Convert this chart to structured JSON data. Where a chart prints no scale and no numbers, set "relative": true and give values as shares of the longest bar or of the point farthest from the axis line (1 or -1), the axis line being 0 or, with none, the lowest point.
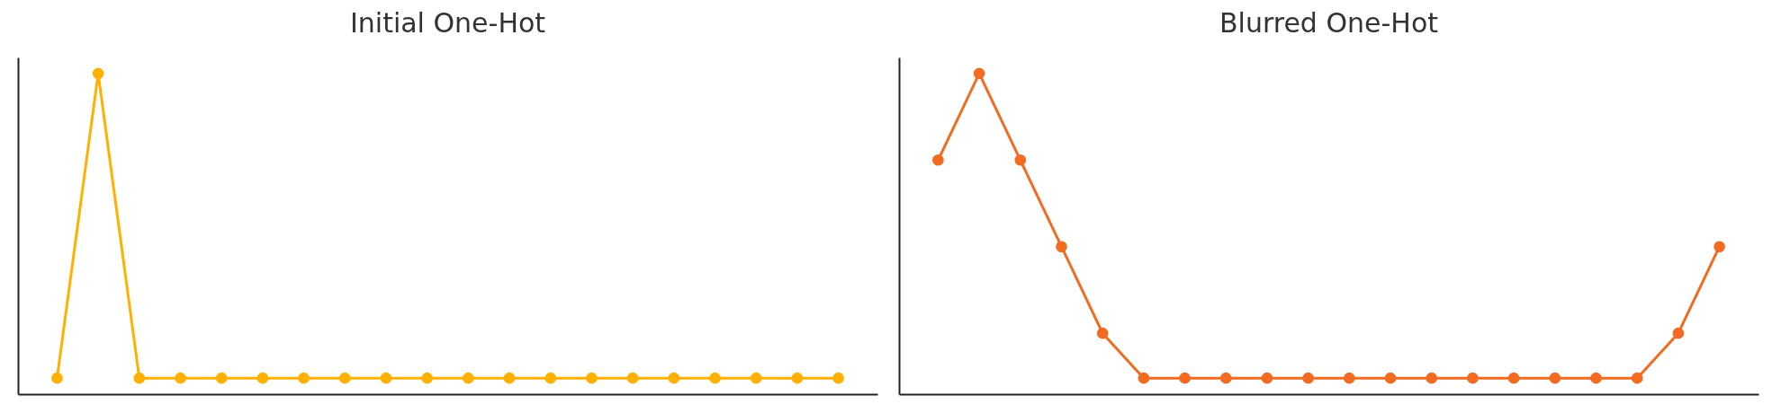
{
  "chart_data": [
    {
      "type": "line",
      "title": "Initial One-Hot",
      "relative": true,
      "marker": "circle",
      "categories": [
        null,
        null,
        null,
        null,
        null,
        null,
        null,
        null,
        null,
        null,
        null,
        null,
        null,
        null,
        null,
        null,
        null,
        null,
        null,
        null
      ],
      "series": [
        {
          "color": "#ffb000",
          "values": [
            0.05,
            1,
            0.05,
            0.05,
            0.05,
            0.05,
            0.05,
            0.05,
            0.05,
            0.05,
            0.05,
            0.05,
            0.05,
            0.05,
            0.05,
            0.05,
            0.05,
            0.05,
            0.05,
            0.05
          ]
        }
      ]
    },
    {
      "type": "line",
      "title": "Blurred One-Hot",
      "relative": true,
      "marker": "circle",
      "categories": [
        null,
        null,
        null,
        null,
        null,
        null,
        null,
        null,
        null,
        null,
        null,
        null,
        null,
        null,
        null,
        null,
        null,
        null,
        null,
        null
      ],
      "series": [
        {
          "color": "#f26b21",
          "values": [
            0.73,
            1,
            0.73,
            0.46,
            0.19,
            0.05,
            0.05,
            0.05,
            0.05,
            0.05,
            0.05,
            0.05,
            0.05,
            0.05,
            0.05,
            0.05,
            0.05,
            0.05,
            0.19,
            0.46
          ]
        }
      ]
    }
  ]
}
